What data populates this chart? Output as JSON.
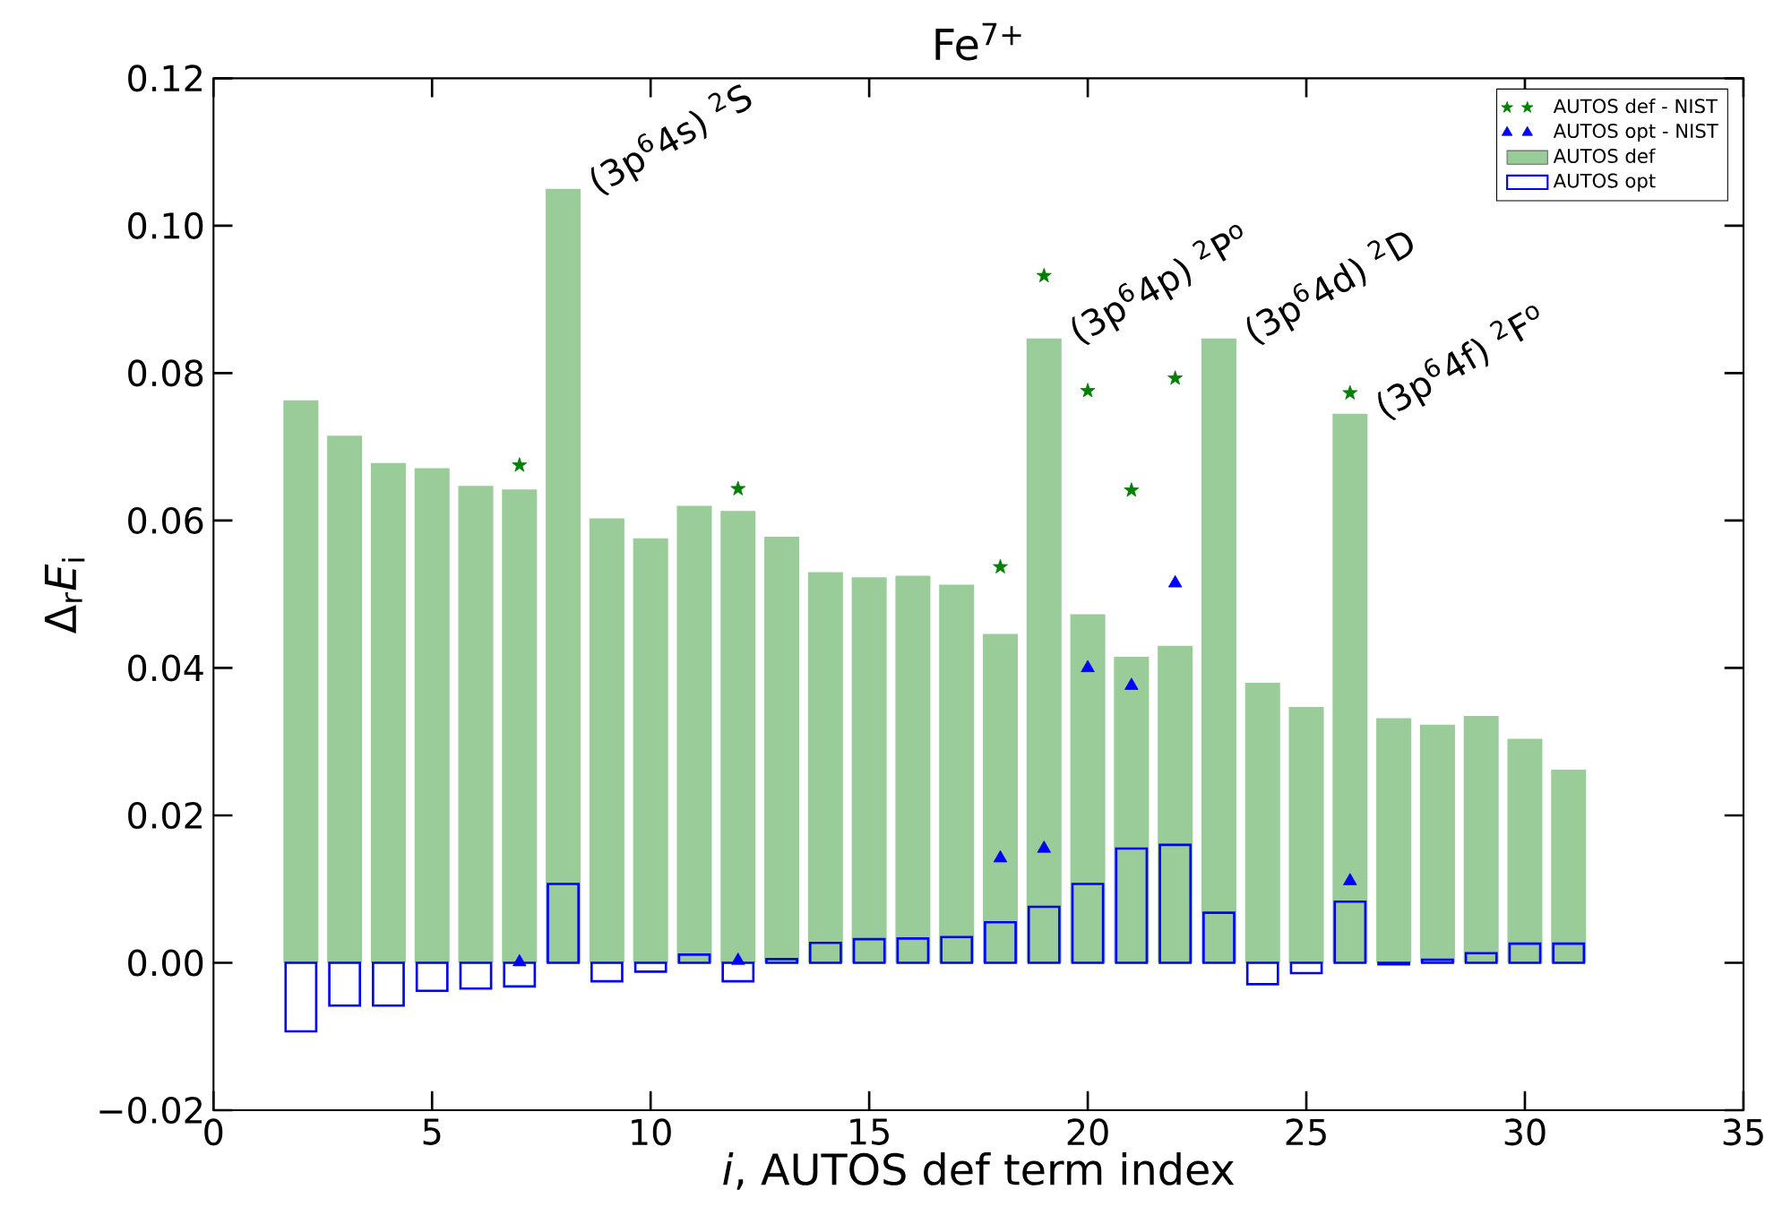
{
  "chart_data": {
    "type": "bar",
    "title": "Fe$^{7+}$",
    "xlabel": "*i*, AUTOS def term index",
    "ylabel": "Δ$_{r}$*E*$_{i}$",
    "xlim": [
      0,
      35
    ],
    "xticks": [
      0,
      5,
      10,
      15,
      20,
      25,
      30,
      35
    ],
    "ylim": [
      -0.02,
      0.12
    ],
    "yticks": [
      {
        "value": -0.02,
        "label": "−0.02"
      },
      {
        "value": 0,
        "label": "0.00"
      },
      {
        "value": 0.02,
        "label": "0.02"
      },
      {
        "value": 0.04,
        "label": "0.04"
      },
      {
        "value": 0.06,
        "label": "0.06"
      },
      {
        "value": 0.08,
        "label": "0.08"
      },
      {
        "value": 0.1,
        "label": "0.10"
      },
      {
        "value": 0.12,
        "label": "0.12"
      }
    ],
    "legend": "top right",
    "grid": false,
    "series": [
      {
        "name": "AUTOS def - NIST",
        "type": "scatter",
        "marker": "star",
        "color": "#008000",
        "x": [
          7,
          12,
          18,
          19,
          20,
          21,
          22,
          26
        ],
        "values": [
          0.0675,
          0.0643,
          0.0537,
          0.0932,
          0.0776,
          0.0641,
          0.0793,
          0.0773
        ]
      },
      {
        "name": "AUTOS opt - NIST",
        "type": "scatter",
        "marker": "triangle",
        "color": "#0000ff",
        "x": [
          7,
          12,
          18,
          19,
          20,
          21,
          22,
          26
        ],
        "values": [
          0.0001,
          0.0003,
          0.0142,
          0.0155,
          0.04,
          0.0376,
          0.0515,
          0.0111
        ]
      },
      {
        "name": "AUTOS def",
        "type": "bar",
        "color": "#99cc99",
        "x": [
          2,
          3,
          4,
          5,
          6,
          7,
          8,
          9,
          10,
          11,
          12,
          13,
          14,
          15,
          16,
          17,
          18,
          19,
          20,
          21,
          22,
          23,
          24,
          25,
          26,
          27,
          28,
          29,
          30,
          31
        ],
        "values": [
          0.0763,
          0.0715,
          0.0678,
          0.0671,
          0.0647,
          0.0642,
          0.105,
          0.0603,
          0.0576,
          0.062,
          0.0613,
          0.0578,
          0.053,
          0.0523,
          0.0525,
          0.0513,
          0.0446,
          0.0847,
          0.0473,
          0.0415,
          0.043,
          0.0847,
          0.038,
          0.0347,
          0.0745,
          0.0332,
          0.0323,
          0.0335,
          0.0304,
          0.0262
        ]
      },
      {
        "name": "AUTOS opt",
        "type": "bar",
        "color": "#0000ff",
        "x": [
          2,
          3,
          4,
          5,
          6,
          7,
          8,
          9,
          10,
          11,
          12,
          13,
          14,
          15,
          16,
          17,
          18,
          19,
          20,
          21,
          22,
          23,
          24,
          25,
          26,
          27,
          28,
          29,
          30,
          31
        ],
        "values": [
          -0.0093,
          -0.0058,
          -0.0058,
          -0.0038,
          -0.0035,
          -0.0032,
          0.0107,
          -0.0025,
          -0.0012,
          0.0011,
          -0.0025,
          0.0005,
          0.0027,
          0.0032,
          0.0033,
          0.0035,
          0.0055,
          0.0076,
          0.0107,
          0.0155,
          0.016,
          0.0068,
          -0.0029,
          -0.0014,
          0.0083,
          -0.0002,
          0.0004,
          0.0013,
          0.0026,
          0.0026
        ]
      }
    ],
    "annotations": [
      {
        "text": "(3p$^{6}$4s) $^{2}$S",
        "x": 8,
        "y": 0.105
      },
      {
        "text": "(3p$^{6}$4p) $^{2}$P$^{o}$",
        "x": 19,
        "y": 0.0847
      },
      {
        "text": "(3p$^{6}$4d) $^{2}$D",
        "x": 23,
        "y": 0.0847
      },
      {
        "text": "(3p$^{6}$4f) $^{2}$F$^{o}$",
        "x": 26,
        "y": 0.0745
      }
    ]
  }
}
